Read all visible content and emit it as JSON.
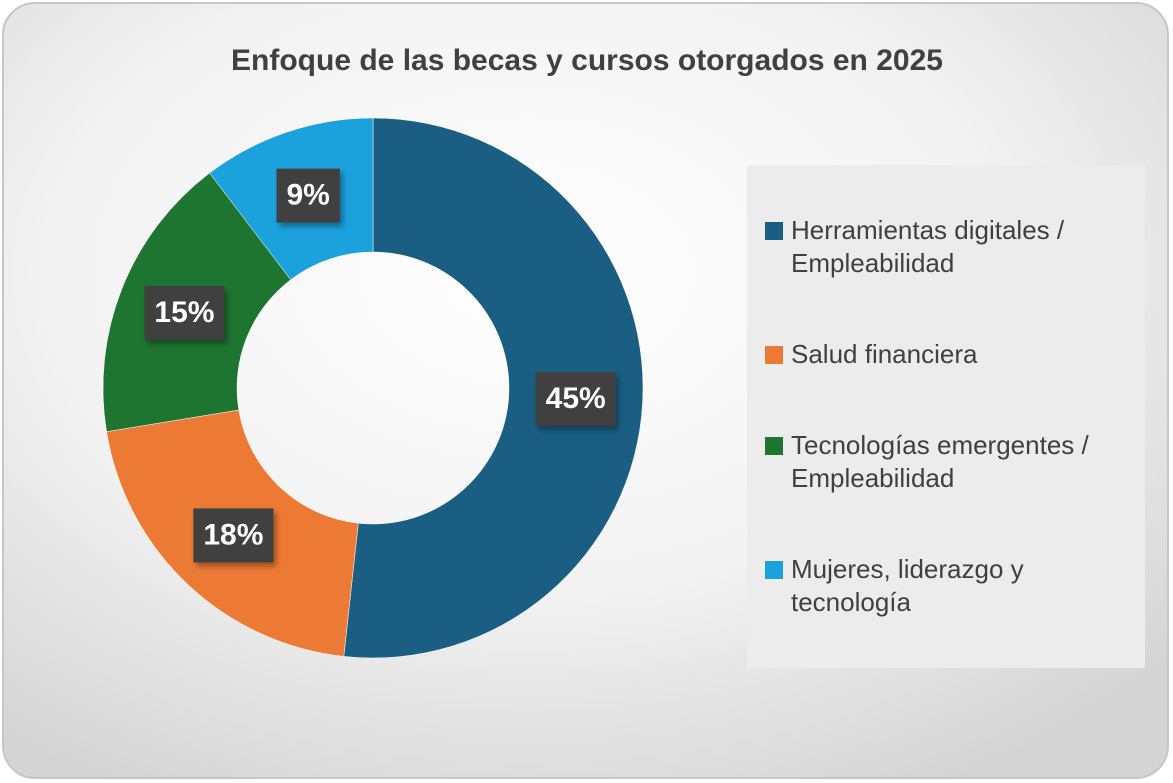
{
  "chart_data": {
    "type": "donut",
    "title": "Enfoque de las becas y cursos otorgados en 2025",
    "categories": [
      "Herramientas digitales / Empleabilidad",
      "Salud financiera",
      "Tecnologías emergentes / Empleabilidad",
      "Mujeres, liderazgo y tecnología"
    ],
    "values": [
      45,
      18,
      15,
      9
    ],
    "value_labels": [
      "45%",
      "18%",
      "15%",
      "9%"
    ],
    "colors": [
      "#1b5e83",
      "#ec7a34",
      "#1e7530",
      "#1ba1dc"
    ],
    "legend": "right"
  }
}
